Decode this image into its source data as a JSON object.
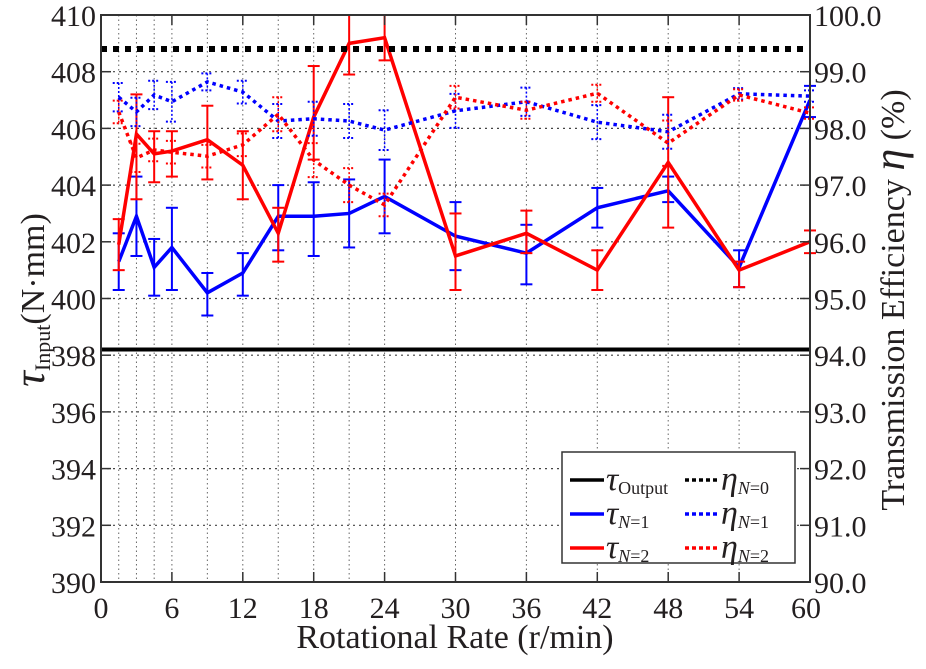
{
  "chart_data": {
    "type": "line",
    "title": "",
    "xlabel": "Rotational Rate (r/min)",
    "ylabel_left": {
      "symbol": "τ",
      "subscript": "Input",
      "unit": "(N·mm)"
    },
    "ylabel_right": {
      "text": "Transmission Efficiency ",
      "symbol": "η",
      "unit": " (%)"
    },
    "xlim": [
      0,
      60
    ],
    "ylim_left": [
      390,
      410
    ],
    "ylim_right": [
      90.0,
      100.0
    ],
    "x_ticks": [
      "0",
      "6",
      "12",
      "18",
      "24",
      "30",
      "36",
      "42",
      "48",
      "54",
      "60"
    ],
    "y_left_ticks": [
      "390",
      "392",
      "394",
      "396",
      "398",
      "400",
      "402",
      "404",
      "406",
      "408",
      "410"
    ],
    "y_right_ticks": [
      "90.0",
      "91.0",
      "92.0",
      "93.0",
      "94.0",
      "95.0",
      "96.0",
      "97.0",
      "98.0",
      "99.0",
      "100.0"
    ],
    "grid": true,
    "legend_position": "bottom-right",
    "x": [
      1.5,
      3,
      4.5,
      6,
      9,
      12,
      15,
      18,
      21,
      24,
      30,
      36,
      42,
      48,
      54,
      60
    ],
    "series": [
      {
        "name": "τ_Output",
        "label_symbol": "τ",
        "label_sub": "Output",
        "axis": "left",
        "color": "#000000",
        "style": "solid",
        "constant": 398.2
      },
      {
        "name": "τ_N=1",
        "label_symbol": "τ",
        "label_sub": "N=1",
        "axis": "left",
        "color": "#0000ff",
        "style": "solid",
        "values": [
          401.3,
          402.9,
          401.1,
          401.8,
          400.2,
          400.9,
          402.9,
          402.9,
          403.0,
          403.6,
          402.2,
          401.6,
          403.2,
          403.8,
          401.1,
          407.0
        ],
        "err_high": [
          402.3,
          404.3,
          402.1,
          403.2,
          400.9,
          401.6,
          404.0,
          404.1,
          404.2,
          404.9,
          403.4,
          402.6,
          403.9,
          404.3,
          401.7,
          407.5
        ],
        "err_low": [
          400.3,
          401.5,
          400.1,
          400.3,
          399.4,
          400.1,
          401.7,
          401.5,
          401.8,
          402.3,
          401.0,
          400.5,
          402.5,
          403.4,
          400.4,
          406.4
        ]
      },
      {
        "name": "τ_N=2",
        "label_symbol": "τ",
        "label_sub": "N=2",
        "axis": "left",
        "color": "#ff0000",
        "style": "solid",
        "values": [
          401.9,
          405.8,
          405.1,
          405.2,
          405.6,
          404.7,
          402.3,
          406.4,
          409.0,
          409.2,
          401.5,
          402.3,
          401.0,
          404.8,
          401.0,
          402.0
        ],
        "err_high": [
          402.8,
          407.2,
          405.9,
          405.9,
          406.8,
          405.9,
          403.2,
          408.2,
          410.0,
          410.0,
          403.0,
          403.1,
          401.7,
          407.1,
          401.3,
          402.4
        ],
        "err_low": [
          401.0,
          403.5,
          404.1,
          404.3,
          404.2,
          403.5,
          401.3,
          404.9,
          407.9,
          408.4,
          400.3,
          401.6,
          400.3,
          402.5,
          400.4,
          401.6
        ]
      },
      {
        "name": "η_N=0",
        "label_symbol": "η",
        "label_sub": "N=0",
        "axis": "right",
        "color": "#000000",
        "style": "dotted",
        "constant": 99.4
      },
      {
        "name": "η_N=1",
        "label_symbol": "η",
        "label_sub": "N=1",
        "axis": "right",
        "color": "#0000ff",
        "style": "dotted",
        "values": [
          98.55,
          98.29,
          98.59,
          98.47,
          98.82,
          98.64,
          98.13,
          98.17,
          98.13,
          97.97,
          98.31,
          98.47,
          98.11,
          97.94,
          98.61,
          98.57
        ],
        "err": [
          0.25,
          0.25,
          0.25,
          0.35,
          0.15,
          0.2,
          0.3,
          0.3,
          0.3,
          0.35,
          0.3,
          0.25,
          0.3,
          0.3,
          0.1,
          0.1
        ]
      },
      {
        "name": "η_N=2",
        "label_symbol": "η",
        "label_sub": "N=2",
        "axis": "right",
        "color": "#ff0000",
        "style": "dotted",
        "values": [
          98.29,
          97.48,
          97.62,
          97.58,
          97.51,
          97.71,
          98.25,
          97.44,
          97.0,
          96.65,
          98.55,
          98.32,
          98.62,
          97.74,
          98.59,
          98.27
        ],
        "err": [
          0.2,
          0.25,
          0.2,
          0.2,
          0.2,
          0.2,
          0.3,
          0.3,
          0.3,
          0.2,
          0.2,
          0.15,
          0.15,
          0.4,
          0.1,
          0.1
        ]
      }
    ]
  }
}
